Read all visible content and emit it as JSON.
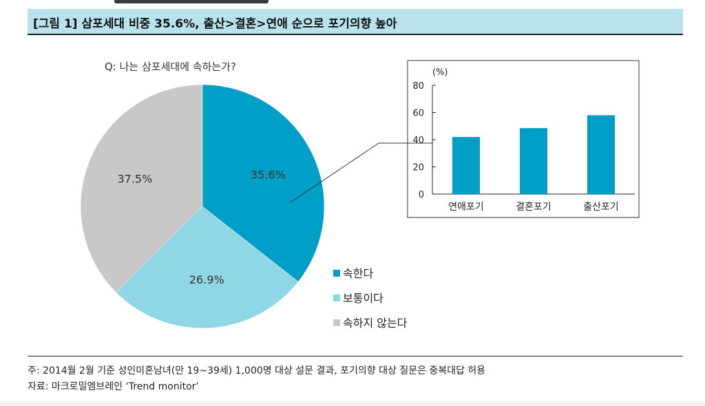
{
  "title": "[그림 1] 삼포세대 비중 35.6%, 출산>결혼>연애 순으로 포기의향 높아",
  "colors": {
    "title_bg": "#b9e3ec",
    "belong": "#009fc7",
    "normal": "#8fd6e6",
    "not_belong": "#c8c8c8",
    "bar": "#009fc7"
  },
  "chart_data": [
    {
      "type": "pie",
      "title": "Q: 나는 삼포세대에 속하는가?",
      "categories": [
        "속한다",
        "보통이다",
        "속하지 않는다"
      ],
      "values": [
        35.6,
        26.9,
        37.5
      ],
      "labels": [
        "35.6%",
        "26.9%",
        "37.5%"
      ],
      "legend_position": "bottom-right"
    },
    {
      "type": "bar",
      "ylabel": "(%)",
      "categories": [
        "연애포기",
        "결혼포기",
        "출산포기"
      ],
      "values": [
        42,
        48.5,
        58
      ],
      "ylim": [
        0,
        80
      ],
      "yticks": [
        "0",
        "20",
        "40",
        "60",
        "80"
      ]
    }
  ],
  "note": "주: 2014월 2월 기준 성인미혼남녀(만 19~39세) 1,000명 대상 설문 결과, 포기의향 대상 질문은 중복대답 허용",
  "source": "자료: 마크로밀엠브레인 ‘Trend monitor’"
}
